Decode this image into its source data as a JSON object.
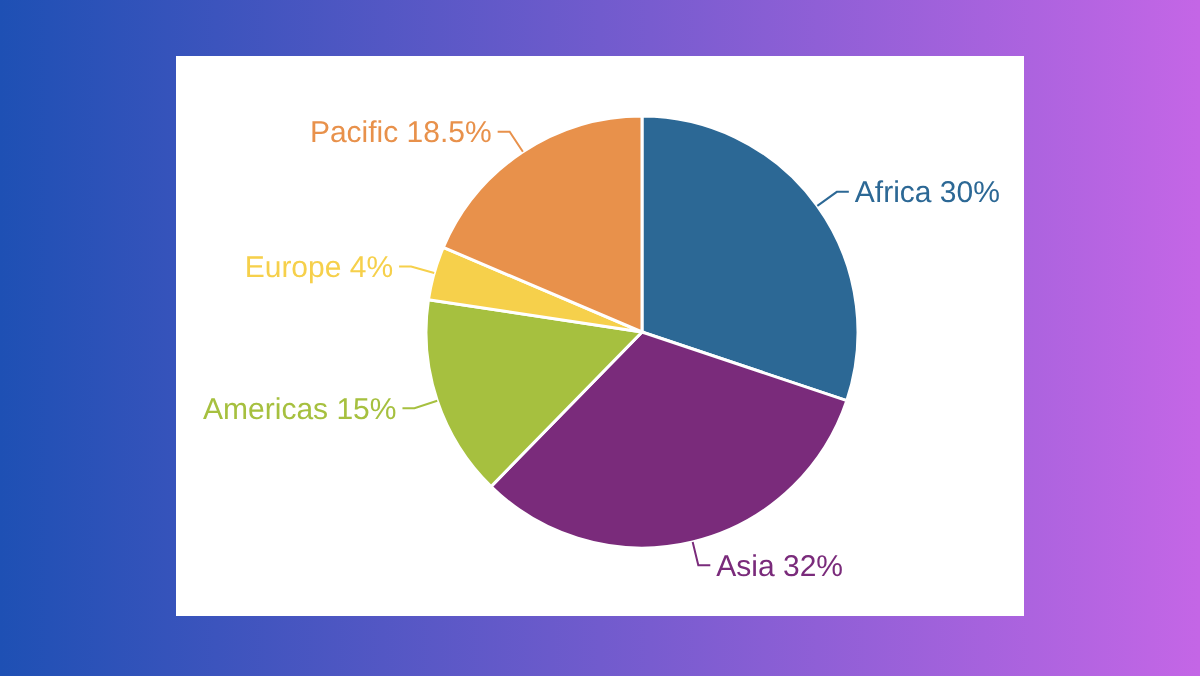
{
  "chart_data": {
    "type": "pie",
    "categories": [
      "Africa",
      "Asia",
      "Americas",
      "Europe",
      "Pacific"
    ],
    "values": [
      30,
      32,
      15,
      4,
      18.5
    ],
    "value_labels": [
      "30%",
      "32%",
      "15%",
      "4%",
      "18.5%"
    ],
    "colors": [
      "#2c6895",
      "#7a2b7b",
      "#a6c03f",
      "#f6d04b",
      "#e8914b"
    ]
  }
}
